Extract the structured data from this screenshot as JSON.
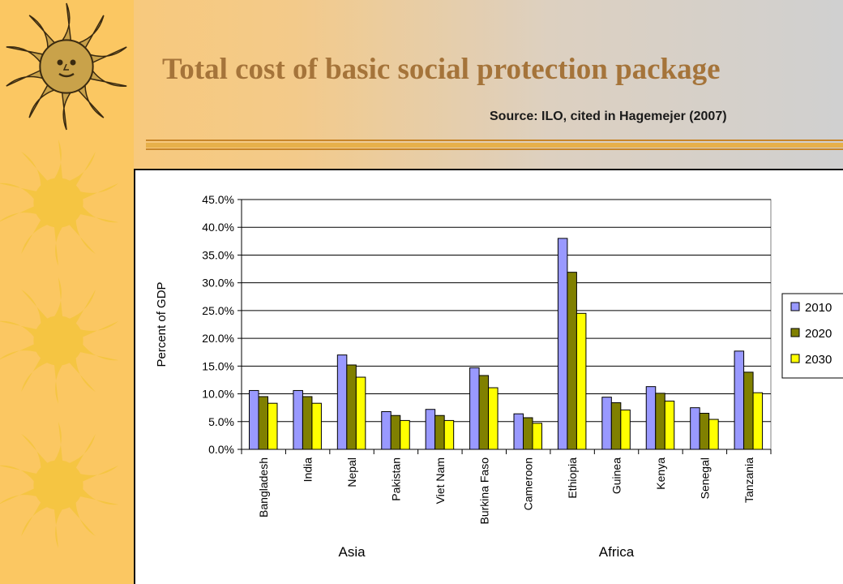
{
  "slide": {
    "title": "Total cost of basic social protection package",
    "source": "Source: ILO, cited in Hagemejer (2007)",
    "colors": {
      "title": "#a5743a",
      "sun": "#f5c542",
      "rule": "#d89a2a"
    }
  },
  "chart_data": {
    "type": "bar",
    "title": "",
    "xlabel": "",
    "ylabel": "Percent of GDP",
    "ylim": [
      0,
      45
    ],
    "y_ticks": [
      "0.0%",
      "5.0%",
      "10.0%",
      "15.0%",
      "20.0%",
      "25.0%",
      "30.0%",
      "35.0%",
      "40.0%",
      "45.0%"
    ],
    "categories": [
      "Bangladesh",
      "India",
      "Nepal",
      "Pakistan",
      "Viet Nam",
      "Burkina Faso",
      "Cameroon",
      "Ethiopia",
      "Guinea",
      "Kenya",
      "Senegal",
      "Tanzania"
    ],
    "category_groups": [
      {
        "label": "Asia",
        "categories": [
          "Bangladesh",
          "India",
          "Nepal",
          "Pakistan",
          "Viet Nam"
        ]
      },
      {
        "label": "Africa",
        "categories": [
          "Burkina Faso",
          "Cameroon",
          "Ethiopia",
          "Guinea",
          "Kenya",
          "Senegal",
          "Tanzania"
        ]
      }
    ],
    "series": [
      {
        "name": "2010",
        "color": "#9999ff",
        "values": [
          10.6,
          10.6,
          17.0,
          6.8,
          7.2,
          14.7,
          6.4,
          38.0,
          9.4,
          11.3,
          7.5,
          17.7
        ]
      },
      {
        "name": "2020",
        "color": "#808000",
        "values": [
          9.5,
          9.5,
          15.2,
          6.1,
          6.1,
          13.3,
          5.7,
          31.9,
          8.4,
          10.1,
          6.5,
          13.9
        ]
      },
      {
        "name": "2030",
        "color": "#ffff00",
        "values": [
          8.3,
          8.3,
          13.0,
          5.2,
          5.2,
          11.1,
          4.7,
          24.5,
          7.1,
          8.7,
          5.4,
          10.2
        ]
      }
    ],
    "grid": true,
    "legend_position": "right"
  }
}
